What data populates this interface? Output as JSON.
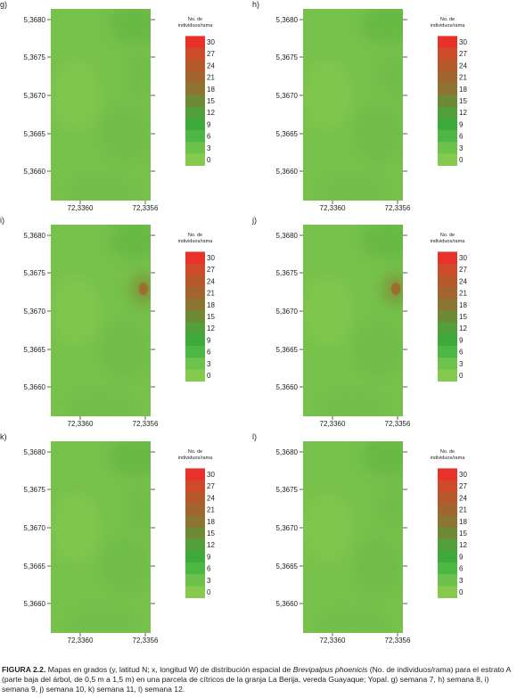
{
  "panels": [
    {
      "letter": "g)",
      "hotspot": null
    },
    {
      "letter": "h)",
      "hotspot": null
    },
    {
      "letter": "i)",
      "hotspot": {
        "level": 21
      }
    },
    {
      "letter": "j)",
      "hotspot": {
        "level": 21
      }
    },
    {
      "letter": "k)",
      "hotspot": null
    },
    {
      "letter": "l)",
      "hotspot": null
    }
  ],
  "chart_data": {
    "type": "heatmap",
    "panel_letters": [
      "g)",
      "h)",
      "i)",
      "j)",
      "k)",
      "l)"
    ],
    "y_ticks": [
      "5,3680",
      "5,3675",
      "5,3670",
      "5,3665",
      "5,3660"
    ],
    "x_ticks": [
      "72,3360",
      "72,3356"
    ],
    "legend": {
      "title_line1": "No. de",
      "title_line2": "individuos/rama",
      "labels": [
        "30",
        "27",
        "24",
        "21",
        "18",
        "15",
        "12",
        "9",
        "6",
        "3",
        "0"
      ],
      "colors": [
        "#e8312a",
        "#cf4a2a",
        "#b5592a",
        "#a1652d",
        "#8c7531",
        "#6f8a35",
        "#52a03a",
        "#3faa3c",
        "#4db744",
        "#6cc24a",
        "#86c94f"
      ]
    },
    "base_color": "#76c14b"
  },
  "caption": {
    "fig_label": "FIGURA 2.2.",
    "text_before_species": " Mapas en grados (y, latitud N; x, longitud W) de distribución espacial de ",
    "species": "Brevipalpus phoenicis",
    "text_after_species": " (No. de individuos/rama) para el estrato A (parte baja del árbol, de 0,5 m a 1,5 m) en una parcela de cítricos de la granja La Berija, vereda Guayaque; Yopal. g) semana 7, h) semana 8, i) semana 9, j) semana 10, k) semana 11, l) semana 12."
  }
}
